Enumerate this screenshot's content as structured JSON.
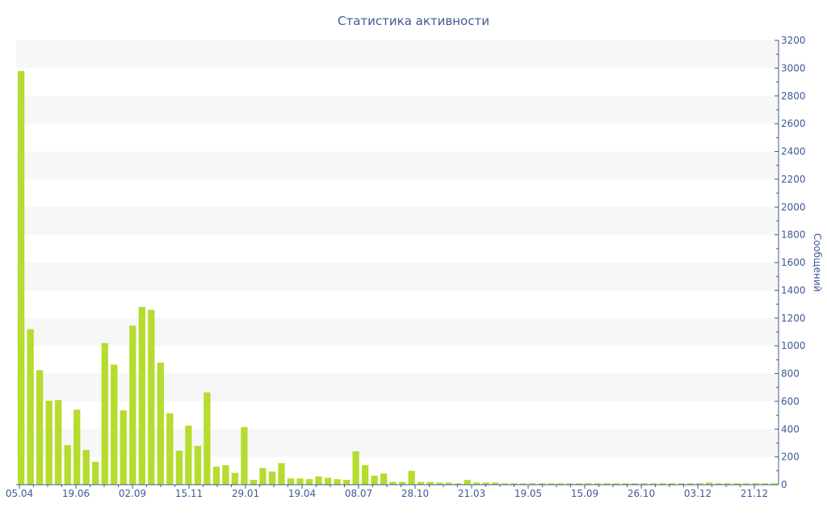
{
  "chart_data": {
    "type": "bar",
    "title": "Статистика активности",
    "ylabel": "Сообщений",
    "xlabel": "",
    "ylim": [
      0,
      3200
    ],
    "yticks": [
      0,
      200,
      400,
      600,
      800,
      1000,
      1200,
      1400,
      1600,
      1800,
      2000,
      2200,
      2400,
      2600,
      2800,
      3000,
      3200
    ],
    "xtick_labels": [
      "05.04",
      "19.06",
      "02.09",
      "15.11",
      "29.01",
      "19.04",
      "08.07",
      "28.10",
      "21.03",
      "19.05",
      "15.09",
      "26.10",
      "03.12",
      "21.12"
    ],
    "grid": "alternating horizontal bands",
    "y_axis_side": "right",
    "legend": "none",
    "colors": {
      "bar": "#b5dc2e",
      "axis": "#3f5a96",
      "title": "#3f5a96",
      "band": "#f7f7f7"
    },
    "values": [
      2980,
      1120,
      825,
      605,
      610,
      285,
      540,
      250,
      165,
      1020,
      865,
      535,
      1145,
      1280,
      1260,
      880,
      515,
      245,
      425,
      280,
      665,
      130,
      140,
      85,
      415,
      35,
      120,
      95,
      155,
      45,
      45,
      40,
      60,
      50,
      40,
      35,
      240,
      140,
      65,
      80,
      20,
      20,
      100,
      20,
      20,
      15,
      15,
      10,
      35,
      15,
      15,
      15,
      10,
      10,
      10,
      10,
      10,
      10,
      10,
      10,
      10,
      10,
      10,
      10,
      10,
      10,
      10,
      10,
      10,
      10,
      10,
      10,
      10,
      10,
      15,
      10,
      10,
      10,
      10,
      10,
      10,
      10
    ]
  }
}
